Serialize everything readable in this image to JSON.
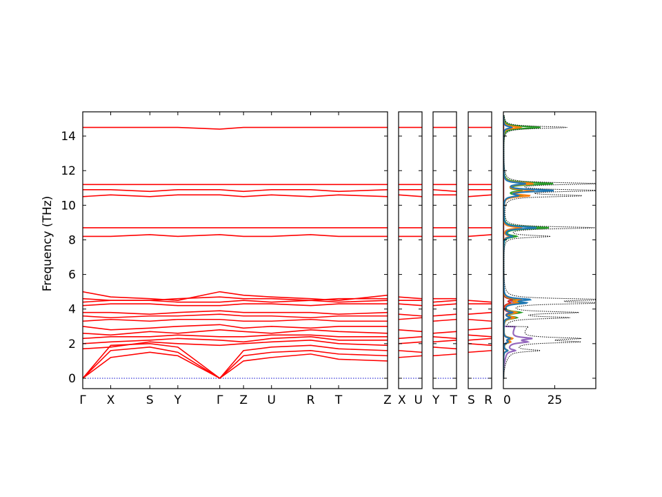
{
  "chart_data": {
    "type": "line",
    "ylabel": "Frequency (THz)",
    "ylim": [
      -0.6,
      15.4
    ],
    "yticks": [
      0,
      2,
      4,
      6,
      8,
      10,
      12,
      14
    ],
    "colors": {
      "bands": "#ff0000",
      "zero_line": "#0000cc",
      "dos_total": "#000000",
      "dos_partials": [
        "#1f77b4",
        "#ff7f0e",
        "#2ca02c",
        "#d62728",
        "#9467bd",
        "#8c564b"
      ]
    },
    "band_panels": [
      {
        "name": "main",
        "x": [
          0,
          1,
          2.4,
          3.4,
          4.9,
          5.75,
          6.75,
          8.15,
          9.15,
          10.9
        ],
        "labels": [
          "Γ",
          "X",
          "S",
          "Y",
          "Γ",
          "Z",
          "U",
          "R",
          "T",
          "Z"
        ],
        "series": [
          {
            "values": [
              0,
              1.2,
              1.5,
              1.3,
              0,
              1.0,
              1.2,
              1.4,
              1.1,
              1.0
            ]
          },
          {
            "values": [
              0,
              1.6,
              1.8,
              1.5,
              0,
              1.3,
              1.5,
              1.6,
              1.4,
              1.3
            ]
          },
          {
            "values": [
              0,
              1.9,
              2.0,
              1.8,
              0,
              1.6,
              1.8,
              1.9,
              1.7,
              1.6
            ]
          },
          {
            "values": [
              1.7,
              1.8,
              2.1,
              2.0,
              1.9,
              2.0,
              2.1,
              2.2,
              2.0,
              1.9
            ]
          },
          {
            "values": [
              2.0,
              2.1,
              2.2,
              2.3,
              2.2,
              2.1,
              2.3,
              2.4,
              2.2,
              2.2
            ]
          },
          {
            "values": [
              2.3,
              2.4,
              2.4,
              2.5,
              2.4,
              2.4,
              2.5,
              2.5,
              2.4,
              2.4
            ]
          },
          {
            "values": [
              2.6,
              2.5,
              2.7,
              2.6,
              2.8,
              2.7,
              2.6,
              2.8,
              2.7,
              2.6
            ]
          },
          {
            "values": [
              3.0,
              2.8,
              2.9,
              3.0,
              3.1,
              2.9,
              3.0,
              2.9,
              3.0,
              3.0
            ]
          },
          {
            "values": [
              3.3,
              3.4,
              3.3,
              3.4,
              3.4,
              3.3,
              3.3,
              3.4,
              3.3,
              3.3
            ]
          },
          {
            "values": [
              3.6,
              3.5,
              3.6,
              3.6,
              3.7,
              3.6,
              3.6,
              3.5,
              3.6,
              3.6
            ]
          },
          {
            "values": [
              3.8,
              3.8,
              3.7,
              3.8,
              3.9,
              3.8,
              3.8,
              3.8,
              3.7,
              3.8
            ]
          },
          {
            "values": [
              4.2,
              4.3,
              4.3,
              4.2,
              4.2,
              4.3,
              4.3,
              4.2,
              4.3,
              4.3
            ]
          },
          {
            "values": [
              4.4,
              4.5,
              4.5,
              4.4,
              4.4,
              4.5,
              4.4,
              4.5,
              4.4,
              4.5
            ]
          },
          {
            "values": [
              4.6,
              4.5,
              4.5,
              4.6,
              4.7,
              4.6,
              4.6,
              4.5,
              4.6,
              4.6
            ]
          },
          {
            "values": [
              5.0,
              4.7,
              4.6,
              4.5,
              5.0,
              4.8,
              4.7,
              4.6,
              4.5,
              4.8
            ]
          },
          {
            "values": [
              8.2,
              8.2,
              8.3,
              8.2,
              8.3,
              8.2,
              8.2,
              8.3,
              8.2,
              8.2
            ]
          },
          {
            "values": [
              8.7,
              8.7,
              8.7,
              8.7,
              8.7,
              8.7,
              8.7,
              8.7,
              8.7,
              8.7
            ]
          },
          {
            "values": [
              10.5,
              10.6,
              10.5,
              10.6,
              10.6,
              10.5,
              10.6,
              10.5,
              10.6,
              10.5
            ]
          },
          {
            "values": [
              10.9,
              10.9,
              10.8,
              10.9,
              10.9,
              10.8,
              10.9,
              10.9,
              10.8,
              10.9
            ]
          },
          {
            "values": [
              11.2,
              11.2,
              11.2,
              11.2,
              11.2,
              11.2,
              11.2,
              11.2,
              11.2,
              11.2
            ]
          },
          {
            "values": [
              14.5,
              14.5,
              14.5,
              14.5,
              14.4,
              14.5,
              14.5,
              14.5,
              14.5,
              14.5
            ]
          }
        ]
      },
      {
        "name": "XU",
        "x": [
          0,
          1
        ],
        "labels": [
          "X",
          "U"
        ],
        "series": [
          {
            "values": [
              1.2,
              1.3
            ]
          },
          {
            "values": [
              1.6,
              1.5
            ]
          },
          {
            "values": [
              2.0,
              2.1
            ]
          },
          {
            "values": [
              2.3,
              2.4
            ]
          },
          {
            "values": [
              2.8,
              2.7
            ]
          },
          {
            "values": [
              3.4,
              3.5
            ]
          },
          {
            "values": [
              3.7,
              3.6
            ]
          },
          {
            "values": [
              4.3,
              4.2
            ]
          },
          {
            "values": [
              4.5,
              4.5
            ]
          },
          {
            "values": [
              4.7,
              4.6
            ]
          },
          {
            "values": [
              8.2,
              8.2
            ]
          },
          {
            "values": [
              8.7,
              8.7
            ]
          },
          {
            "values": [
              10.6,
              10.5
            ]
          },
          {
            "values": [
              10.9,
              10.9
            ]
          },
          {
            "values": [
              11.2,
              11.2
            ]
          },
          {
            "values": [
              14.5,
              14.5
            ]
          }
        ]
      },
      {
        "name": "YT",
        "x": [
          0,
          1
        ],
        "labels": [
          "Y",
          "T"
        ],
        "series": [
          {
            "values": [
              1.3,
              1.4
            ]
          },
          {
            "values": [
              1.8,
              1.7
            ]
          },
          {
            "values": [
              2.1,
              2.2
            ]
          },
          {
            "values": [
              2.4,
              2.3
            ]
          },
          {
            "values": [
              2.6,
              2.7
            ]
          },
          {
            "values": [
              3.3,
              3.4
            ]
          },
          {
            "values": [
              3.6,
              3.7
            ]
          },
          {
            "values": [
              4.2,
              4.3
            ]
          },
          {
            "values": [
              4.4,
              4.5
            ]
          },
          {
            "values": [
              4.6,
              4.6
            ]
          },
          {
            "values": [
              8.2,
              8.2
            ]
          },
          {
            "values": [
              8.7,
              8.7
            ]
          },
          {
            "values": [
              10.6,
              10.6
            ]
          },
          {
            "values": [
              10.9,
              10.8
            ]
          },
          {
            "values": [
              11.2,
              11.2
            ]
          },
          {
            "values": [
              14.5,
              14.5
            ]
          }
        ]
      },
      {
        "name": "SR",
        "x": [
          0,
          1
        ],
        "labels": [
          "S",
          "R"
        ],
        "series": [
          {
            "values": [
              1.5,
              1.6
            ]
          },
          {
            "values": [
              2.0,
              1.9
            ]
          },
          {
            "values": [
              2.2,
              2.3
            ]
          },
          {
            "values": [
              2.5,
              2.4
            ]
          },
          {
            "values": [
              2.8,
              2.9
            ]
          },
          {
            "values": [
              3.4,
              3.3
            ]
          },
          {
            "values": [
              3.7,
              3.8
            ]
          },
          {
            "values": [
              4.3,
              4.3
            ]
          },
          {
            "values": [
              4.5,
              4.4
            ]
          },
          {
            "values": [
              8.2,
              8.3
            ]
          },
          {
            "values": [
              8.7,
              8.7
            ]
          },
          {
            "values": [
              10.5,
              10.6
            ]
          },
          {
            "values": [
              10.9,
              10.9
            ]
          },
          {
            "values": [
              11.2,
              11.2
            ]
          },
          {
            "values": [
              14.5,
              14.5
            ]
          }
        ]
      }
    ],
    "dos": {
      "xlim": [
        0,
        45
      ],
      "xticks": [
        0,
        25
      ],
      "peaks": [
        {
          "f": 14.5,
          "total": 31,
          "parts": [
            4,
            8,
            18
          ]
        },
        {
          "f": 11.25,
          "total": 44,
          "parts": [
            10,
            14,
            24
          ]
        },
        {
          "f": 10.85,
          "total": 44,
          "parts": [
            24,
            14,
            8
          ]
        },
        {
          "f": 10.55,
          "total": 36,
          "parts": [
            6,
            12,
            9
          ]
        },
        {
          "f": 8.7,
          "total": 44,
          "parts": [
            16,
            8,
            22
          ]
        },
        {
          "f": 8.2,
          "total": 22,
          "parts": [
            4,
            3,
            6
          ]
        },
        {
          "f": 4.55,
          "total": 44,
          "parts": [
            12,
            8,
            6,
            4,
            6
          ]
        },
        {
          "f": 4.35,
          "total": 43,
          "parts": [
            10,
            6,
            8,
            3,
            5
          ]
        },
        {
          "f": 3.8,
          "total": 34,
          "parts": [
            4,
            6,
            8,
            3,
            6
          ]
        },
        {
          "f": 3.5,
          "total": 30,
          "parts": [
            3,
            5,
            6,
            4,
            6
          ]
        },
        {
          "f": 2.3,
          "total": 28,
          "parts": [
            3,
            4,
            4,
            3,
            10
          ]
        },
        {
          "f": 2.1,
          "total": 29,
          "parts": [
            2,
            3,
            3,
            2,
            8
          ]
        },
        {
          "f": 1.6,
          "total": 14,
          "parts": [
            2,
            2,
            2,
            2,
            4
          ]
        }
      ]
    }
  }
}
